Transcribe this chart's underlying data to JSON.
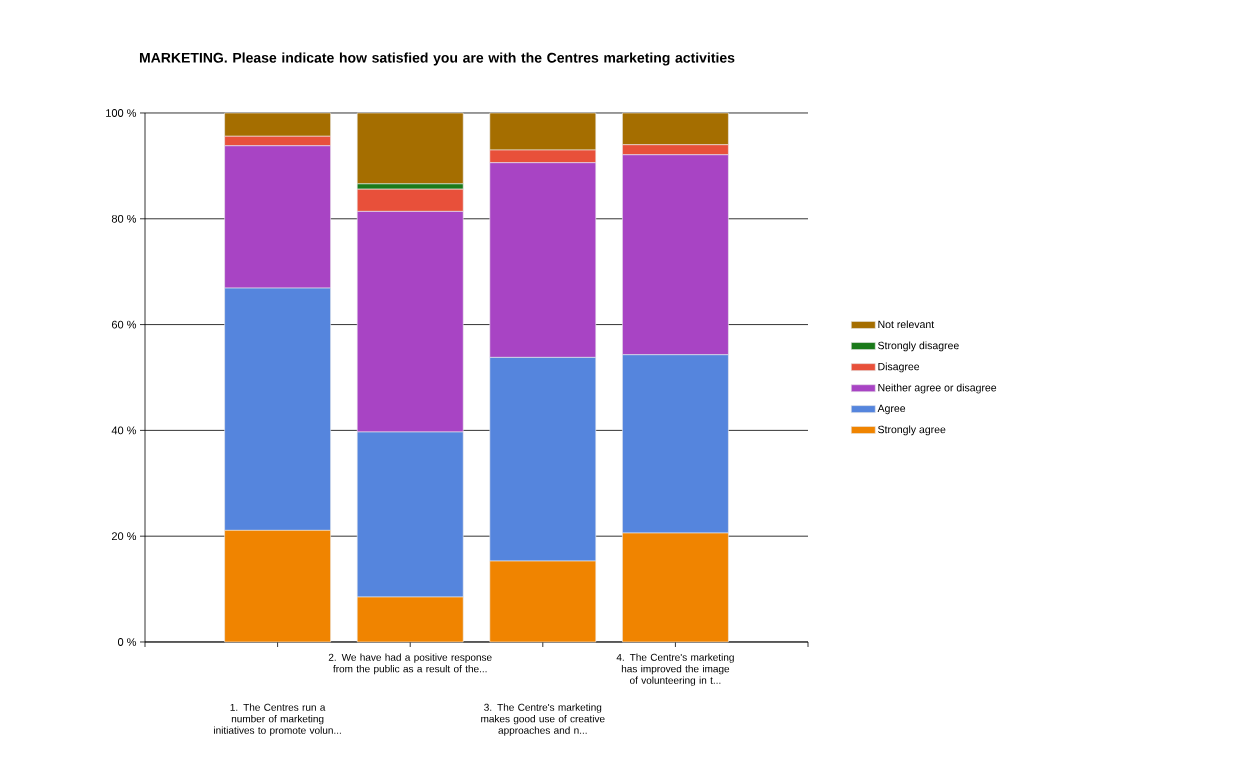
{
  "chart_data": {
    "type": "bar",
    "stacked": true,
    "title": "MARKETING. Please indicate how satisfied you are with the Centres marketing activities",
    "categories": [
      "1. The Centres run a number of marketing initiatives to promote volun...",
      "2. We have had a positive response from the public as a result of the...",
      "3. The Centre's marketing makes good use of creative approaches and n...",
      "4. The Centre's marketing has improved the image of volunteering in t..."
    ],
    "series": [
      {
        "name": "Strongly agree",
        "color": "#f08400",
        "values": [
          21.1,
          8.5,
          15.3,
          20.6
        ]
      },
      {
        "name": "Agree",
        "color": "#5585dd",
        "values": [
          45.8,
          31.2,
          38.5,
          33.7
        ]
      },
      {
        "name": "Neither agree or disagree",
        "color": "#a844c4",
        "values": [
          26.9,
          41.7,
          36.8,
          37.8
        ]
      },
      {
        "name": "Disagree",
        "color": "#e8503a",
        "values": [
          1.8,
          4.2,
          2.4,
          1.9
        ]
      },
      {
        "name": "Strongly disagree",
        "color": "#1a7a1a",
        "values": [
          0,
          1.0,
          0,
          0
        ]
      },
      {
        "name": "Not relevant",
        "color": "#a56e00",
        "values": [
          4.4,
          13.4,
          7.0,
          6.0
        ]
      }
    ],
    "ylim": [
      0,
      100
    ],
    "yticks": [
      {
        "value": 0,
        "label": "0 %"
      },
      {
        "value": 20,
        "label": "20 %"
      },
      {
        "value": 40,
        "label": "40 %"
      },
      {
        "value": 60,
        "label": "60 %"
      },
      {
        "value": 80,
        "label": "80 %"
      },
      {
        "value": 100,
        "label": "100 %"
      }
    ],
    "grid": "y",
    "legend": "right"
  }
}
